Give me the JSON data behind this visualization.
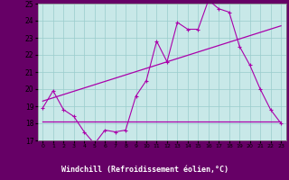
{
  "xlabel": "Windchill (Refroidissement éolien,°C)",
  "xlim": [
    -0.5,
    23.5
  ],
  "ylim": [
    17,
    25
  ],
  "yticks": [
    17,
    18,
    19,
    20,
    21,
    22,
    23,
    24,
    25
  ],
  "xticks": [
    0,
    1,
    2,
    3,
    4,
    5,
    6,
    7,
    8,
    9,
    10,
    11,
    12,
    13,
    14,
    15,
    16,
    17,
    18,
    19,
    20,
    21,
    22,
    23
  ],
  "bg_color": "#c8e8e8",
  "line_color": "#aa00aa",
  "grid_color": "#99cccc",
  "xlabel_bg": "#660066",
  "xlabel_color": "#ffffff",
  "series1_x": [
    0,
    1,
    2,
    3,
    4,
    5,
    6,
    7,
    8,
    9,
    10,
    11,
    12,
    13,
    14,
    15,
    16,
    17,
    18,
    19,
    20,
    21,
    22,
    23
  ],
  "series1_y": [
    18.9,
    19.9,
    18.8,
    18.4,
    17.5,
    16.8,
    17.6,
    17.5,
    17.6,
    19.6,
    20.5,
    22.8,
    21.6,
    23.9,
    23.5,
    23.5,
    25.2,
    24.7,
    24.5,
    22.5,
    21.4,
    20.0,
    18.8,
    18.0
  ],
  "series2_x": [
    0,
    23
  ],
  "series2_y": [
    19.3,
    23.7
  ],
  "series3_x": [
    0,
    23
  ],
  "series3_y": [
    18.1,
    18.1
  ]
}
